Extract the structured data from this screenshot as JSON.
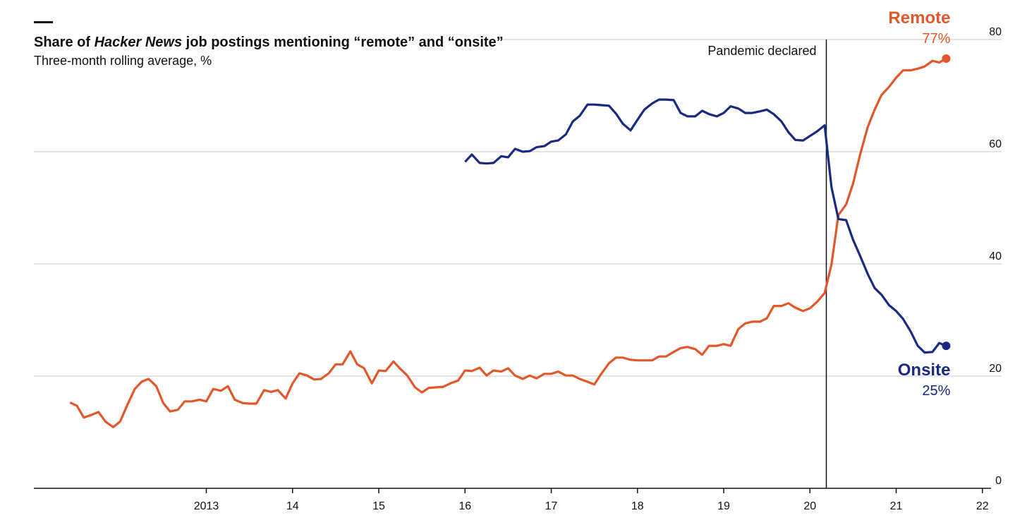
{
  "chart_data": {
    "type": "line",
    "title": [
      "Share of ",
      "Hacker News",
      " job postings mentioning “remote” and “onsite”"
    ],
    "subtitle": "Three-month rolling average, %",
    "x": [
      2011.42,
      2011.5,
      2011.58,
      2011.67,
      2011.75,
      2011.83,
      2011.92,
      2012,
      2012.08,
      2012.17,
      2012.25,
      2012.33,
      2012.42,
      2012.5,
      2012.58,
      2012.67,
      2012.75,
      2012.83,
      2012.92,
      2013,
      2013.08,
      2013.17,
      2013.25,
      2013.33,
      2013.42,
      2013.5,
      2013.58,
      2013.67,
      2013.75,
      2013.83,
      2013.92,
      2014,
      2014.08,
      2014.17,
      2014.25,
      2014.33,
      2014.42,
      2014.5,
      2014.58,
      2014.67,
      2014.75,
      2014.83,
      2014.92,
      2015,
      2015.08,
      2015.17,
      2015.25,
      2015.33,
      2015.42,
      2015.5,
      2015.58,
      2015.67,
      2015.75,
      2015.83,
      2015.92,
      2016,
      2016.08,
      2016.17,
      2016.25,
      2016.33,
      2016.42,
      2016.5,
      2016.58,
      2016.67,
      2016.75,
      2016.83,
      2016.92,
      2017,
      2017.08,
      2017.17,
      2017.25,
      2017.33,
      2017.42,
      2017.5,
      2017.58,
      2017.67,
      2017.75,
      2017.83,
      2017.92,
      2018,
      2018.08,
      2018.17,
      2018.25,
      2018.33,
      2018.42,
      2018.5,
      2018.58,
      2018.67,
      2018.75,
      2018.83,
      2018.92,
      2019,
      2019.08,
      2019.17,
      2019.25,
      2019.33,
      2019.42,
      2019.5,
      2019.58,
      2019.67,
      2019.75,
      2019.83,
      2019.92,
      2020,
      2020.08,
      2020.17,
      2020.25,
      2020.33,
      2020.42,
      2020.5,
      2020.58,
      2020.67,
      2020.75,
      2020.83,
      2020.92,
      2021,
      2021.08,
      2021.17,
      2021.25,
      2021.33,
      2021.42,
      2021.5,
      2021.58
    ],
    "series": [
      {
        "name": "Remote",
        "color": "#e3582b",
        "values": [
          15.3,
          14.7,
          12.6,
          13.1,
          13.6,
          11.9,
          10.9,
          11.9,
          14.7,
          17.7,
          19.0,
          19.5,
          18.2,
          15.2,
          13.7,
          14.0,
          15.5,
          15.5,
          15.8,
          15.5,
          17.7,
          17.4,
          18.2,
          15.8,
          15.2,
          15.1,
          15.1,
          17.5,
          17.2,
          17.5,
          16.0,
          18.7,
          20.5,
          20.1,
          19.4,
          19.5,
          20.5,
          22.1,
          22.1,
          24.4,
          22.1,
          21.4,
          18.7,
          21.0,
          20.9,
          22.6,
          21.3,
          20.1,
          18.0,
          17.1,
          17.9,
          18.0,
          18.1,
          18.7,
          19.2,
          21.0,
          20.9,
          21.5,
          20.1,
          21.0,
          20.8,
          21.4,
          20.1,
          19.5,
          20.1,
          19.6,
          20.4,
          20.4,
          20.8,
          20.1,
          20.1,
          19.5,
          19.0,
          18.5,
          20.4,
          22.3,
          23.3,
          23.3,
          22.9,
          22.8,
          22.8,
          22.8,
          23.5,
          23.5,
          24.3,
          25.0,
          25.2,
          24.8,
          23.8,
          25.4,
          25.4,
          25.7,
          25.4,
          28.4,
          29.4,
          29.7,
          29.7,
          30.3,
          32.5,
          32.5,
          33.0,
          32.2,
          31.6,
          32.1,
          33.2,
          34.8,
          39.9,
          48.7,
          50.6,
          54.3,
          59.4,
          64.4,
          67.5,
          70.1,
          71.6,
          73.2,
          74.5,
          74.5,
          74.8,
          75.2,
          76.2,
          75.9,
          76.6
        ],
        "value_labels": [
          null,
          null,
          null,
          null,
          null,
          null,
          null,
          null,
          null,
          null,
          null,
          null,
          null,
          null,
          null,
          null,
          null,
          null,
          null,
          null,
          null,
          null,
          null,
          null,
          null,
          null,
          null,
          null,
          null,
          null,
          null,
          null,
          null,
          null,
          null,
          null,
          null,
          null,
          null,
          null,
          null,
          null,
          null,
          null,
          null,
          null,
          null,
          null,
          null,
          null,
          null,
          null,
          null,
          null,
          null,
          null,
          null,
          null,
          null,
          null,
          null,
          null,
          null,
          null,
          null,
          null,
          null,
          null,
          null,
          null,
          null,
          null,
          null,
          null,
          null,
          null,
          null,
          null,
          null,
          null,
          null,
          null,
          null,
          null,
          null,
          null,
          null,
          null,
          null,
          null,
          null,
          null,
          null,
          null,
          null,
          null,
          null,
          null,
          null,
          null,
          null,
          null,
          null,
          null,
          null,
          null,
          null,
          null,
          null,
          null,
          null,
          null,
          null,
          null,
          null,
          null,
          null,
          null,
          null,
          null,
          null,
          null,
          "77%"
        ]
      },
      {
        "name": "Onsite",
        "color": "#1a2a80",
        "values": [
          null,
          null,
          null,
          null,
          null,
          null,
          null,
          null,
          null,
          null,
          null,
          null,
          null,
          null,
          null,
          null,
          null,
          null,
          null,
          null,
          null,
          null,
          null,
          null,
          null,
          null,
          null,
          null,
          null,
          null,
          null,
          null,
          null,
          null,
          null,
          null,
          null,
          null,
          null,
          null,
          null,
          null,
          null,
          null,
          null,
          null,
          null,
          null,
          null,
          null,
          null,
          null,
          null,
          null,
          null,
          58.2,
          59.5,
          58.0,
          57.9,
          58.0,
          59.2,
          59.0,
          60.5,
          60.0,
          60.1,
          60.8,
          61.0,
          61.8,
          62.0,
          63.1,
          65.4,
          66.4,
          68.4,
          68.4,
          68.3,
          68.2,
          66.8,
          65.0,
          63.8,
          65.7,
          67.5,
          68.6,
          69.3,
          69.3,
          69.2,
          66.9,
          66.3,
          66.3,
          67.3,
          66.7,
          66.3,
          66.9,
          68.1,
          67.7,
          66.9,
          66.9,
          67.2,
          67.5,
          66.7,
          65.4,
          63.5,
          62.1,
          62.0,
          62.8,
          63.6,
          64.7,
          53.7,
          48.0,
          47.8,
          44.3,
          41.5,
          38.2,
          35.7,
          34.5,
          32.6,
          31.6,
          30.2,
          27.9,
          25.4,
          24.2,
          24.3,
          25.9,
          25.4
        ],
        "value_labels": [
          null,
          null,
          null,
          null,
          null,
          null,
          null,
          null,
          null,
          null,
          null,
          null,
          null,
          null,
          null,
          null,
          null,
          null,
          null,
          null,
          null,
          null,
          null,
          null,
          null,
          null,
          null,
          null,
          null,
          null,
          null,
          null,
          null,
          null,
          null,
          null,
          null,
          null,
          null,
          null,
          null,
          null,
          null,
          null,
          null,
          null,
          null,
          null,
          null,
          null,
          null,
          null,
          null,
          null,
          null,
          null,
          null,
          null,
          null,
          null,
          null,
          null,
          null,
          null,
          null,
          null,
          null,
          null,
          null,
          null,
          null,
          null,
          null,
          null,
          null,
          null,
          null,
          null,
          null,
          null,
          null,
          null,
          null,
          null,
          null,
          null,
          null,
          null,
          null,
          null,
          null,
          null,
          null,
          null,
          null,
          null,
          null,
          null,
          null,
          null,
          null,
          null,
          null,
          null,
          null,
          null,
          null,
          null,
          null,
          null,
          null,
          null,
          null,
          null,
          null,
          null,
          null,
          null,
          null,
          null,
          null,
          null,
          "25%"
        ]
      }
    ],
    "annotations": [
      {
        "x": 2020.19,
        "text": "Pandemic declared"
      }
    ],
    "xlim": [
      2011,
      2022.1
    ],
    "xticks": [
      2013,
      {
        "value": 2014,
        "label": "14"
      },
      {
        "value": 2015,
        "label": "15"
      },
      {
        "value": 2016,
        "label": "16"
      },
      {
        "value": 2017,
        "label": "17"
      },
      {
        "value": 2018,
        "label": "18"
      },
      {
        "value": 2019,
        "label": "19"
      },
      {
        "value": 2020,
        "label": "20"
      },
      {
        "value": 2021,
        "label": "21"
      },
      {
        "value": 2022,
        "label": "22"
      }
    ],
    "ylim": [
      0,
      80
    ],
    "yticks": [
      0,
      20,
      40,
      60,
      80
    ],
    "grid": true
  }
}
